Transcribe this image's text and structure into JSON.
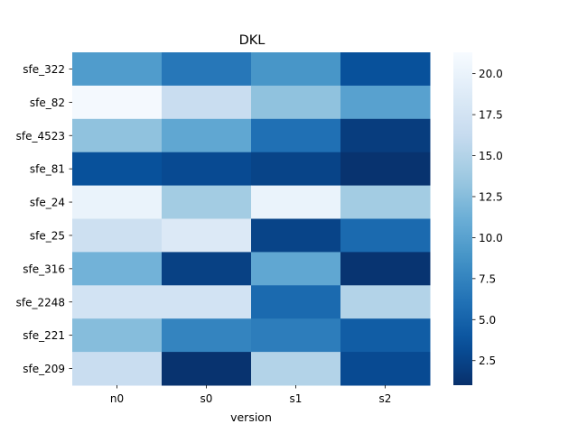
{
  "chart_data": {
    "type": "heatmap",
    "title": "DKL",
    "xlabel": "version",
    "ylabel": "",
    "columns": [
      "n0",
      "s0",
      "s1",
      "s2"
    ],
    "rows": [
      "sfe_322",
      "sfe_82",
      "sfe_4523",
      "sfe_81",
      "sfe_24",
      "sfe_25",
      "sfe_316",
      "sfe_2248",
      "sfe_221",
      "sfe_209"
    ],
    "values": [
      [
        9.5,
        6.5,
        9.0,
        3.5
      ],
      [
        21.0,
        16.5,
        13.0,
        10.0
      ],
      [
        13.0,
        10.5,
        6.0,
        2.0
      ],
      [
        3.5,
        3.0,
        2.5,
        1.2
      ],
      [
        20.0,
        14.0,
        20.0,
        14.0
      ],
      [
        17.0,
        18.5,
        2.5,
        5.5
      ],
      [
        11.5,
        2.3,
        10.5,
        1.3
      ],
      [
        17.5,
        17.5,
        5.5,
        15.0
      ],
      [
        12.5,
        7.5,
        7.0,
        4.5
      ],
      [
        16.5,
        1.2,
        15.0,
        3.0
      ]
    ],
    "colorbar": {
      "min": 1.0,
      "max": 21.3,
      "ticks": [
        "2.5",
        "5.0",
        "7.5",
        "10.0",
        "12.5",
        "15.0",
        "17.5",
        "20.0"
      ],
      "colormap": "Blues_r"
    }
  }
}
